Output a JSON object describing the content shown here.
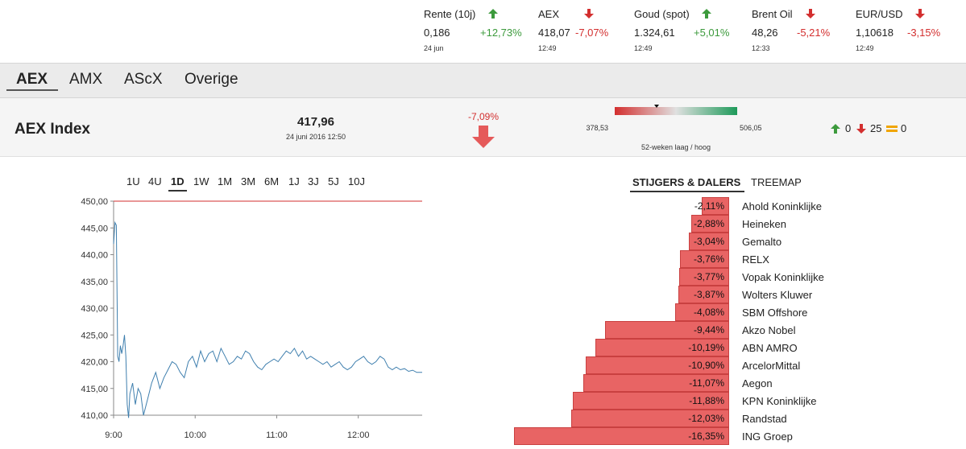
{
  "ticker": [
    {
      "name": "Rente (10j)",
      "value": "0,186",
      "change": "+12,73%",
      "dir": "up",
      "time": "24 jun"
    },
    {
      "name": "AEX",
      "value": "418,07",
      "change": "-7,07%",
      "dir": "down",
      "time": "12:49"
    },
    {
      "name": "Goud (spot)",
      "value": "1.324,61",
      "change": "+5,01%",
      "dir": "up",
      "time": "12:49"
    },
    {
      "name": "Brent Oil",
      "value": "48,26",
      "change": "-5,21%",
      "dir": "down",
      "time": "12:33"
    },
    {
      "name": "EUR/USD",
      "value": "1,10618",
      "change": "-3,15%",
      "dir": "down",
      "time": "12:49"
    }
  ],
  "tabs": [
    "AEX",
    "AMX",
    "AScX",
    "Overige"
  ],
  "active_tab": "AEX",
  "index": {
    "title": "AEX Index",
    "value": "417,96",
    "date": "24 juni 2016 12:50",
    "change": "-7,09%",
    "range_low": "378,53",
    "range_high": "506,05",
    "range_label": "52-weken laag / hoog",
    "range_position": 0.34,
    "up_count": "0",
    "down_count": "25",
    "unch_count": "0"
  },
  "periods": [
    "1U",
    "4U",
    "1D",
    "1W",
    "1M",
    "3M",
    "6M",
    "1J",
    "3J",
    "5J",
    "10J"
  ],
  "active_period": "1D",
  "movers_tabs": [
    "STIJGERS & DALERS",
    "TREEMAP"
  ],
  "movers": [
    {
      "name": "Ahold Koninklijke",
      "pct": "-2,11%",
      "value": -2.11
    },
    {
      "name": "Heineken",
      "pct": "-2,88%",
      "value": -2.88
    },
    {
      "name": "Gemalto",
      "pct": "-3,04%",
      "value": -3.04
    },
    {
      "name": "RELX",
      "pct": "-3,76%",
      "value": -3.76
    },
    {
      "name": "Vopak Koninklijke",
      "pct": "-3,77%",
      "value": -3.77
    },
    {
      "name": "Wolters Kluwer",
      "pct": "-3,87%",
      "value": -3.87
    },
    {
      "name": "SBM Offshore",
      "pct": "-4,08%",
      "value": -4.08
    },
    {
      "name": "Akzo Nobel",
      "pct": "-9,44%",
      "value": -9.44
    },
    {
      "name": "ABN AMRO",
      "pct": "-10,19%",
      "value": -10.19
    },
    {
      "name": "ArcelorMittal",
      "pct": "-10,90%",
      "value": -10.9
    },
    {
      "name": "Aegon",
      "pct": "-11,07%",
      "value": -11.07
    },
    {
      "name": "KPN Koninklijke",
      "pct": "-11,88%",
      "value": -11.88
    },
    {
      "name": "Randstad",
      "pct": "-12,03%",
      "value": -12.03
    },
    {
      "name": "ING Groep",
      "pct": "-16,35%",
      "value": -16.35
    }
  ],
  "chart_data": {
    "type": "line",
    "ylim": [
      410,
      450
    ],
    "yticks": [
      "450,00",
      "445,00",
      "440,00",
      "435,00",
      "430,00",
      "425,00",
      "420,00",
      "415,00",
      "410,00"
    ],
    "ytick_values": [
      450,
      445,
      440,
      435,
      430,
      425,
      420,
      415,
      410
    ],
    "xticks": [
      "9:00",
      "10:00",
      "11:00",
      "12:00"
    ],
    "xtick_values": [
      0,
      60,
      120,
      180
    ],
    "xlim": [
      0,
      227
    ],
    "reference_line": 450,
    "series": [
      {
        "x": [
          0,
          1,
          2,
          3,
          4,
          5,
          6,
          7,
          8,
          9,
          10,
          11,
          12,
          14,
          16,
          18,
          20,
          22,
          25,
          28,
          31,
          34,
          37,
          40,
          43,
          46,
          49,
          52,
          55,
          58,
          61,
          64,
          67,
          70,
          73,
          76,
          79,
          82,
          85,
          88,
          91,
          94,
          97,
          100,
          103,
          106,
          109,
          112,
          115,
          118,
          121,
          124,
          127,
          130,
          133,
          136,
          139,
          142,
          145,
          148,
          151,
          154,
          157,
          160,
          163,
          166,
          169,
          172,
          175,
          178,
          181,
          184,
          187,
          190,
          193,
          196,
          199,
          202,
          205,
          208,
          211,
          214,
          217,
          220,
          223,
          227
        ],
        "y": [
          442,
          446,
          445.5,
          421,
          420,
          423,
          421.5,
          423,
          425,
          421,
          412,
          409.5,
          414,
          416,
          412,
          415,
          414,
          410,
          413,
          416,
          418,
          415,
          417,
          418.5,
          420,
          419.5,
          418,
          417,
          420,
          421,
          419,
          422,
          420,
          421.5,
          422,
          420,
          422.5,
          421,
          419.5,
          420,
          421,
          420.5,
          422,
          421.5,
          420,
          419,
          418.5,
          419.5,
          420,
          420.5,
          420,
          421,
          422,
          421.5,
          422.5,
          421,
          422,
          420.5,
          421,
          420.5,
          420,
          419.5,
          420,
          419,
          419.5,
          420,
          419,
          418.5,
          419,
          420,
          420.5,
          421,
          420,
          419.5,
          420,
          421,
          420.5,
          419,
          418.5,
          419,
          418.5,
          418.7,
          418.2,
          418.4,
          418,
          418
        ]
      }
    ]
  },
  "colors": {
    "up": "#3c9a3c",
    "down": "#d32f2f",
    "line": "#3f7fae",
    "bar": "#e86464"
  }
}
